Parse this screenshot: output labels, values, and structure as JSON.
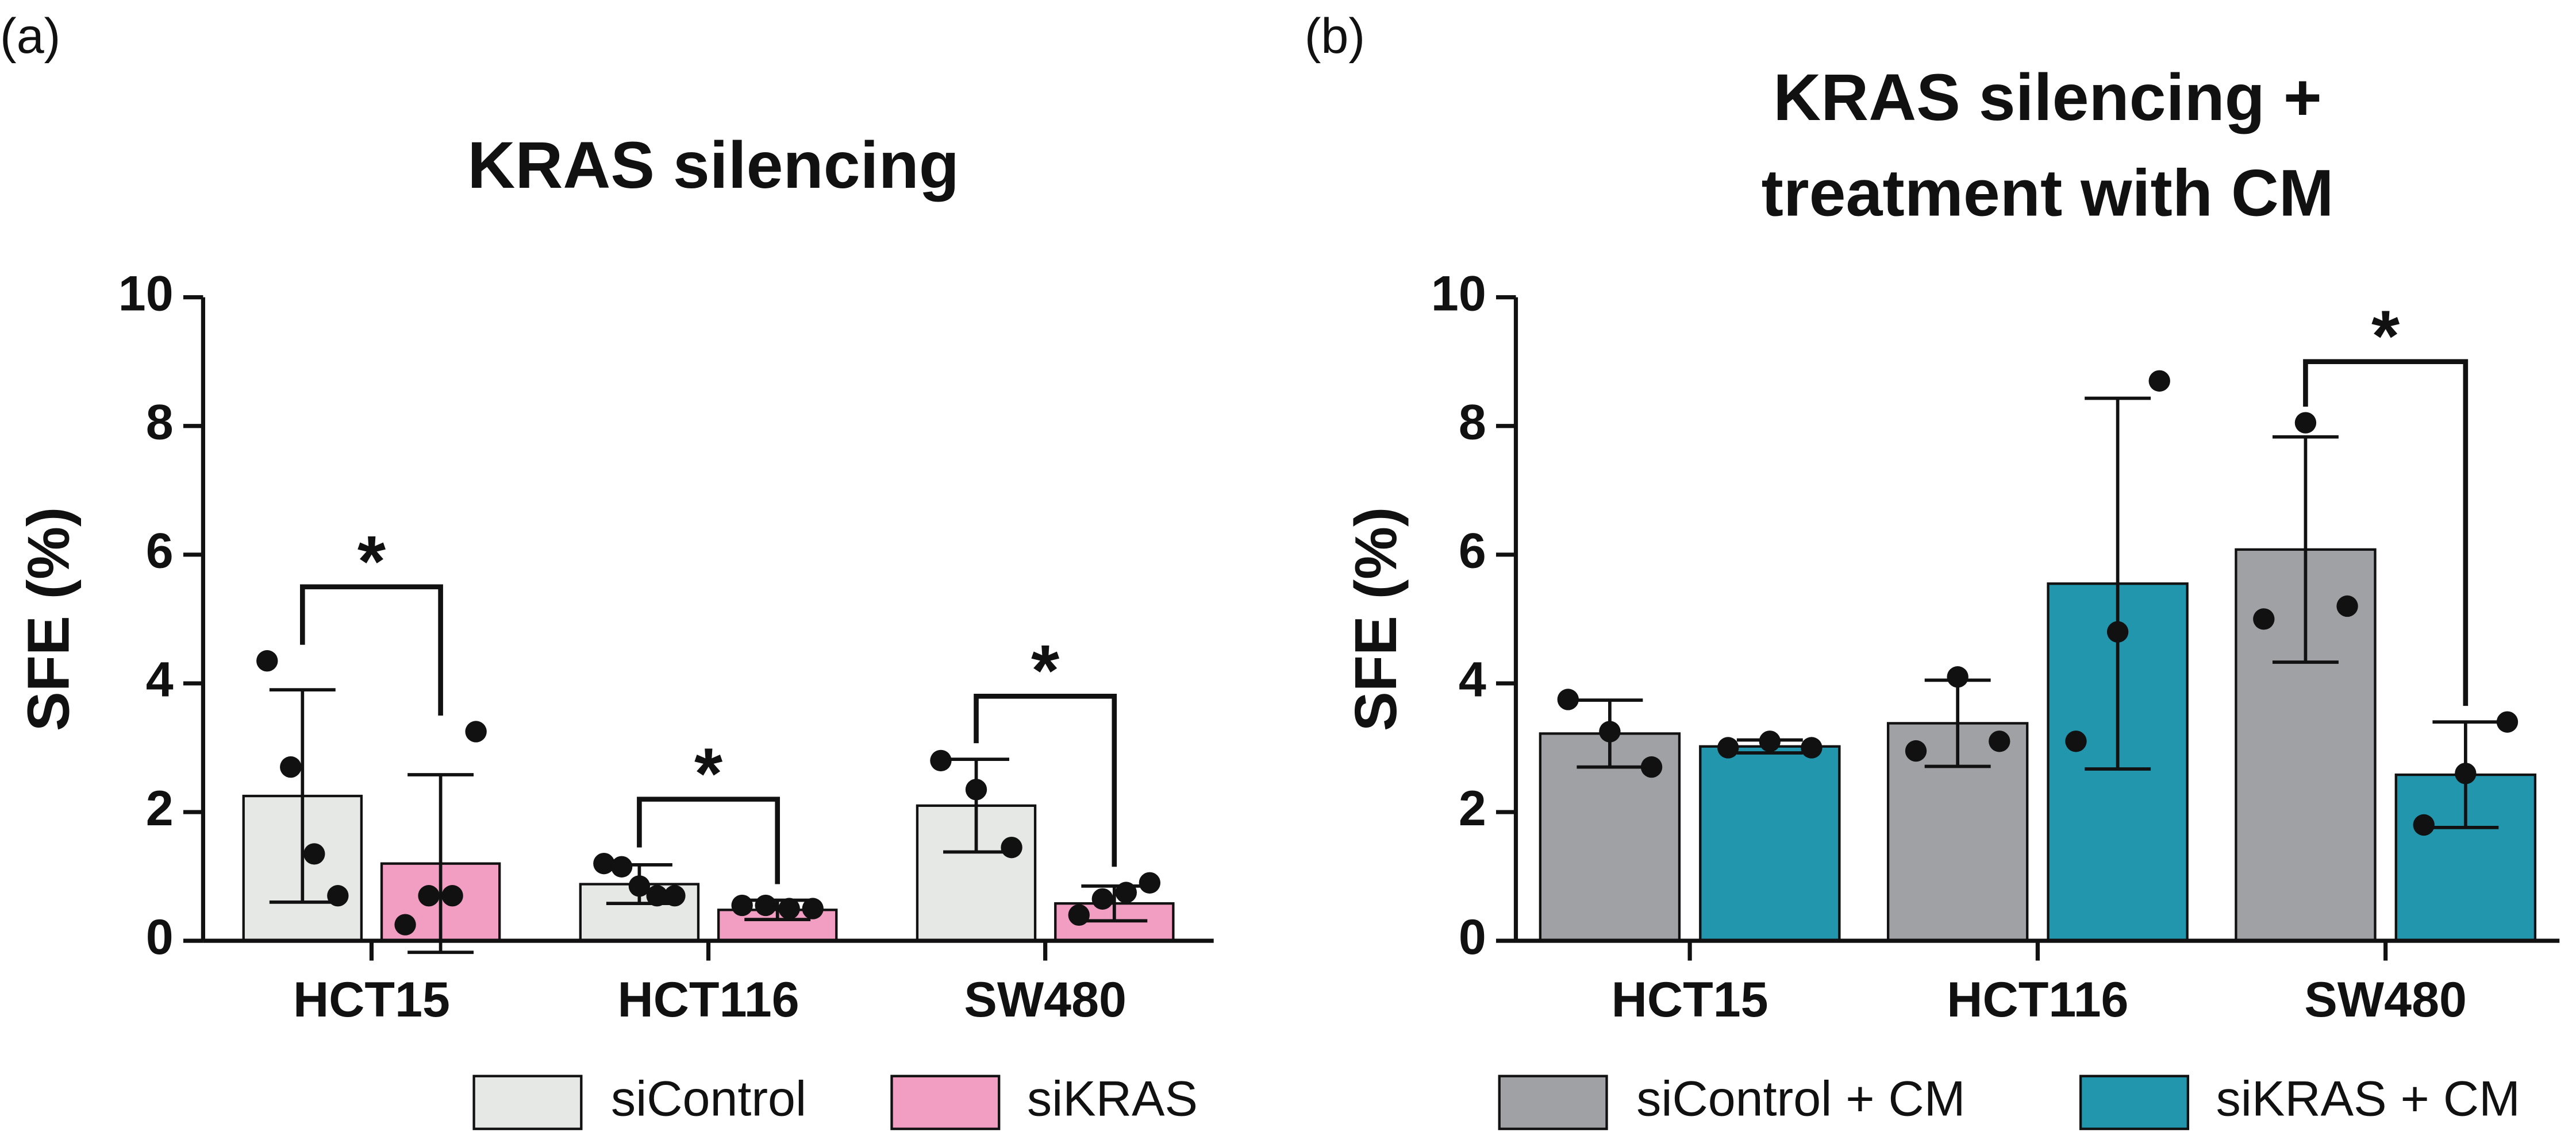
{
  "chart_data": [
    {
      "type": "bar",
      "panel": "(a)",
      "title": [
        "KRAS silencing"
      ],
      "ylabel": "SFE (%)",
      "categories": [
        "HCT15",
        "HCT116",
        "SW480"
      ],
      "series": [
        {
          "name": "siControl",
          "color": "#e6e8e6",
          "values": [
            2.25,
            0.88,
            2.1
          ],
          "errors": [
            1.65,
            0.3,
            0.72
          ],
          "points": [
            [
              4.35,
              2.7,
              1.35,
              0.7
            ],
            [
              1.2,
              1.15,
              0.85,
              0.7,
              0.7
            ],
            [
              2.8,
              2.35,
              1.45
            ]
          ]
        },
        {
          "name": "siKRAS",
          "color": "#f29ec2",
          "values": [
            1.2,
            0.48,
            0.58
          ],
          "errors": [
            1.38,
            0.15,
            0.27
          ],
          "points": [
            [
              0.25,
              0.7,
              0.7,
              3.25
            ],
            [
              0.55,
              0.55,
              0.5,
              0.5
            ],
            [
              0.4,
              0.65,
              0.75,
              0.9
            ]
          ]
        }
      ],
      "annotations": [
        {
          "text": "*",
          "category": 0,
          "y": 5.5
        },
        {
          "text": "*",
          "category": 1,
          "y": 2.2
        },
        {
          "text": "*",
          "category": 2,
          "y": 3.8
        }
      ],
      "ylim": [
        0,
        10
      ],
      "yticks": [
        0,
        2,
        4,
        6,
        8,
        10
      ]
    },
    {
      "type": "bar",
      "panel": "(b)",
      "title": [
        "KRAS silencing +",
        "treatment with CM"
      ],
      "ylabel": "SFE (%)",
      "categories": [
        "HCT15",
        "HCT116",
        "SW480"
      ],
      "series": [
        {
          "name": "siControl + CM",
          "color": "#a0a1a5",
          "values": [
            3.22,
            3.38,
            6.08
          ],
          "errors": [
            0.52,
            0.67,
            1.75
          ],
          "points": [
            [
              3.75,
              3.25,
              2.7
            ],
            [
              2.95,
              4.1,
              3.1
            ],
            [
              5.0,
              8.05,
              5.2
            ]
          ]
        },
        {
          "name": "siKRAS + CM",
          "color": "#2196ad",
          "values": [
            3.02,
            5.55,
            2.58
          ],
          "errors": [
            0.1,
            2.88,
            0.82
          ],
          "points": [
            [
              3.0,
              3.1,
              3.0
            ],
            [
              3.1,
              4.8,
              8.7
            ],
            [
              1.8,
              2.6,
              3.4
            ]
          ]
        }
      ],
      "annotations": [
        {
          "text": "*",
          "category": 2,
          "y": 9.0
        }
      ],
      "ylim": [
        0,
        10
      ],
      "yticks": [
        0,
        2,
        4,
        6,
        8,
        10
      ]
    }
  ]
}
